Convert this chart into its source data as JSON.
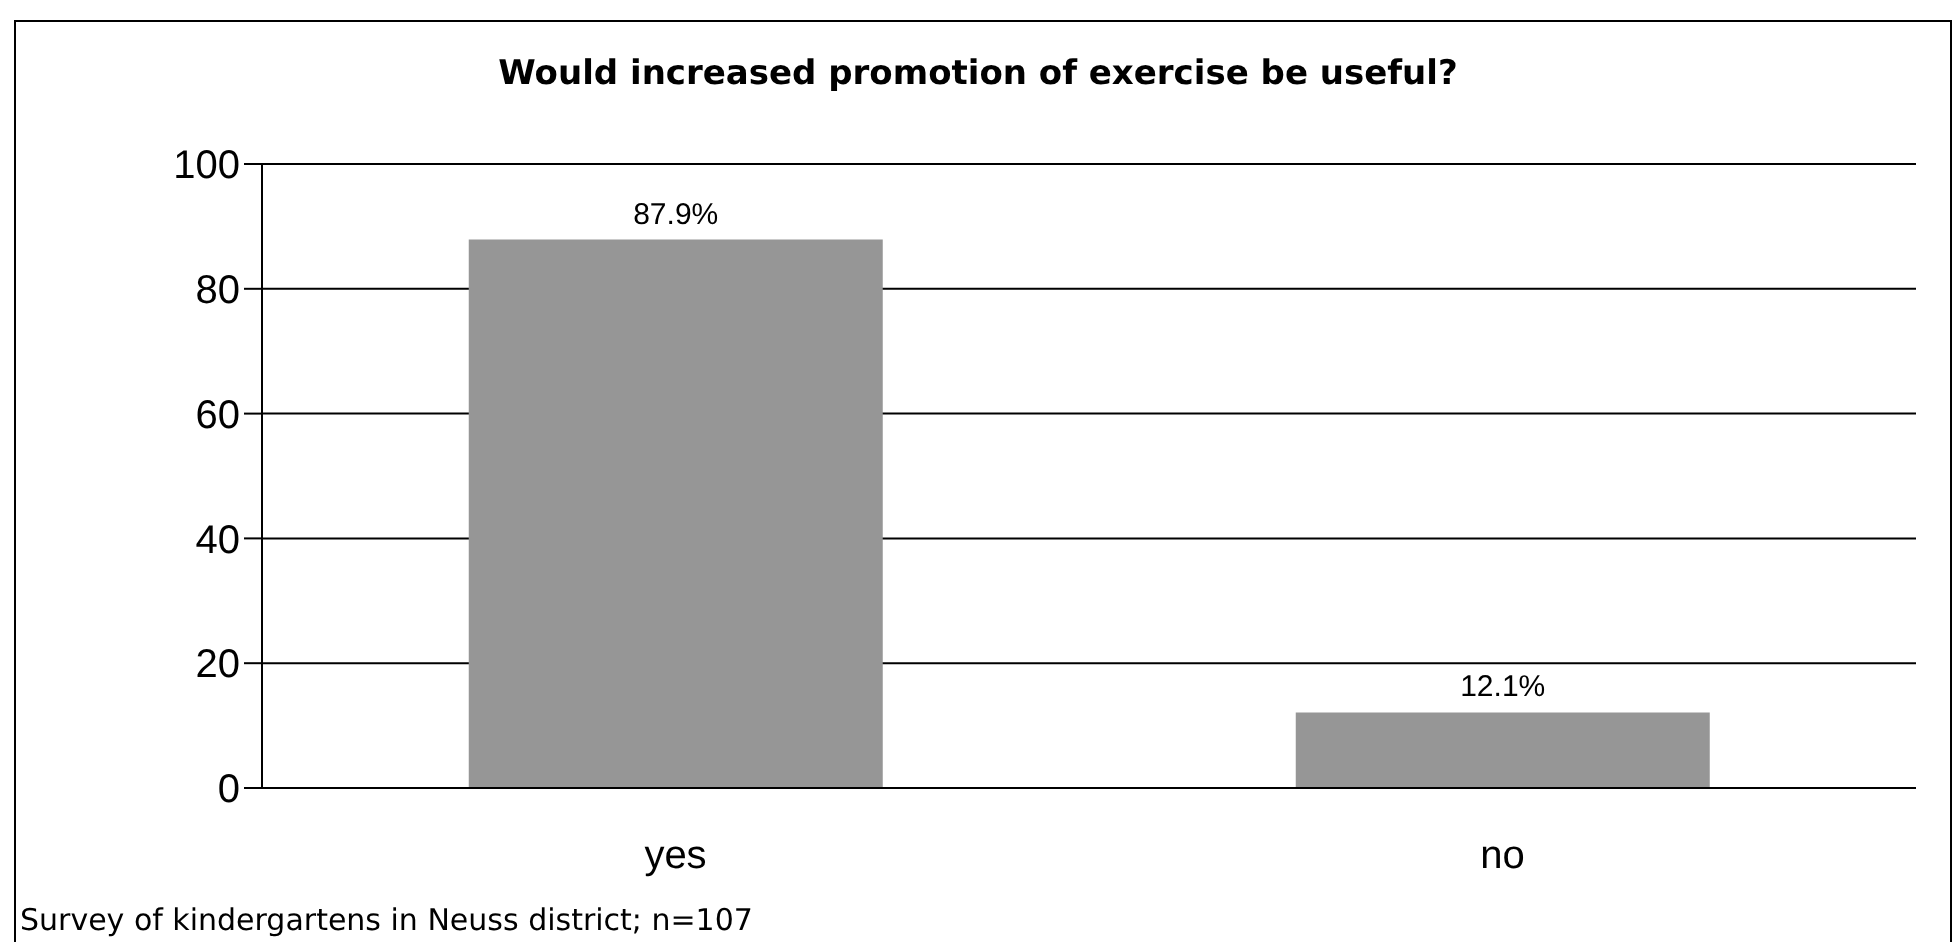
{
  "chart_data": {
    "type": "bar",
    "title": "Would increased promotion of exercise be useful?",
    "categories": [
      "yes",
      "no"
    ],
    "values": [
      87.9,
      12.1
    ],
    "color": "#969696",
    "ylim": [
      0,
      100
    ],
    "yticks": [
      0,
      20,
      40,
      60,
      80,
      100
    ],
    "grid": "y",
    "value_labels": [
      "87.9%",
      "12.1%"
    ],
    "annotations": [
      "Survey of kindergartens in Neuss district; n=107"
    ]
  }
}
